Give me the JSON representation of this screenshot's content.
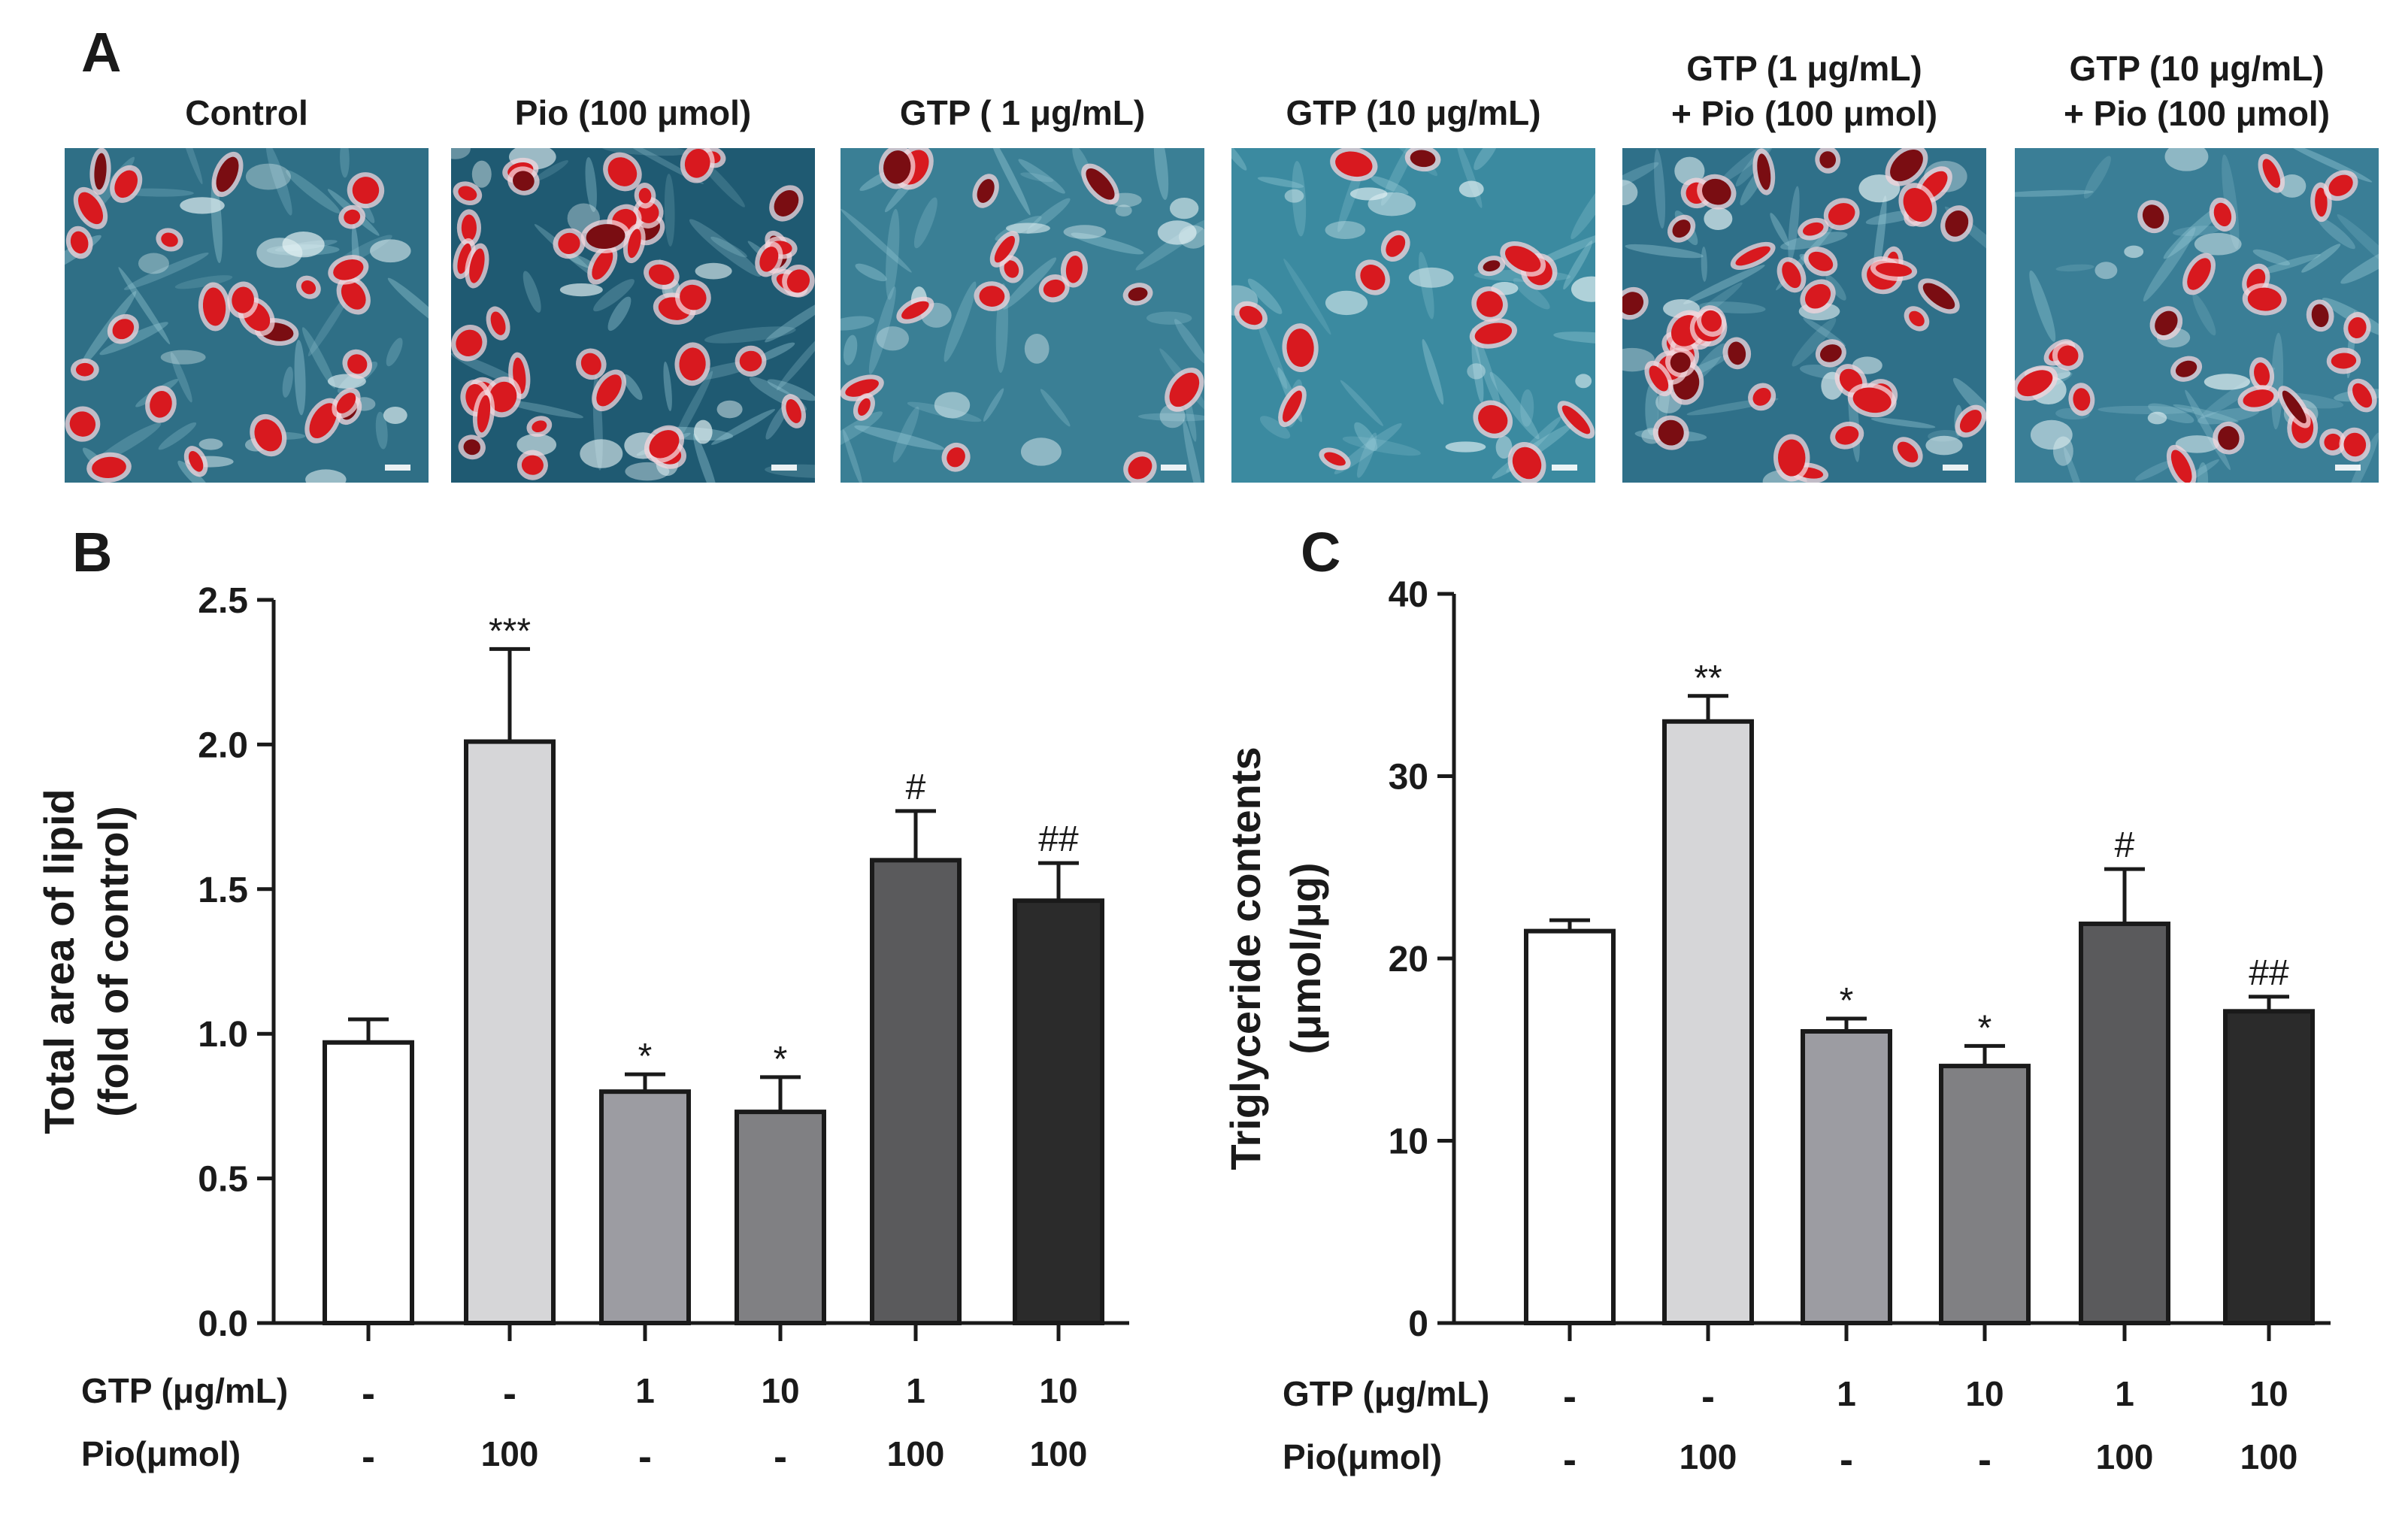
{
  "figure": {
    "panel_a_letter": "A",
    "micrographs": [
      {
        "label_line1": "Control",
        "label_line2": "",
        "background": "#2f6f86",
        "stain_density": "medium"
      },
      {
        "label_line1": "Pio (100 μmol)",
        "label_line2": "",
        "background": "#1f5a72",
        "stain_density": "high"
      },
      {
        "label_line1": "GTP ( 1 μg/mL)",
        "label_line2": "",
        "background": "#3a7f95",
        "stain_density": "low"
      },
      {
        "label_line1": "GTP (10 μg/mL)",
        "label_line2": "",
        "background": "#3b8aa0",
        "stain_density": "low"
      },
      {
        "label_line1": "GTP (1 μg/mL)",
        "label_line2": "+ Pio (100 μmol)",
        "background": "#2f7089",
        "stain_density": "high"
      },
      {
        "label_line1": "GTP (10 μg/mL)",
        "label_line2": "+ Pio (100 μmol)",
        "background": "#3a7e96",
        "stain_density": "medium"
      }
    ]
  },
  "chart_data": [
    {
      "panel": "B",
      "type": "bar",
      "title": "",
      "xlabel": "",
      "ylabel": "Total area of lipid (fold of control)",
      "ylabel_line1": "Total area of lipid",
      "ylabel_line2": "(fold of control)",
      "ylim": [
        0,
        2.5
      ],
      "yticks": [
        0.0,
        0.5,
        1.0,
        1.5,
        2.0,
        2.5
      ],
      "ytick_labels": [
        "0.0",
        "0.5",
        "1.0",
        "1.5",
        "2.0",
        "2.5"
      ],
      "categories": [
        "Control",
        "Pio 100",
        "GTP 1",
        "GTP 10",
        "GTP 1 + Pio 100",
        "GTP 10 + Pio 100"
      ],
      "values": [
        0.97,
        2.01,
        0.8,
        0.73,
        1.6,
        1.46
      ],
      "errors": [
        0.08,
        0.32,
        0.06,
        0.12,
        0.17,
        0.13
      ],
      "significance": [
        "",
        "***",
        "*",
        "*",
        "#",
        "##"
      ],
      "bar_colors": [
        "#ffffff",
        "#d6d6d8",
        "#9c9ca2",
        "#808083",
        "#5a5a5c",
        "#2b2b2b"
      ],
      "conditions": [
        {
          "label": "GTP (μg/mL)",
          "values": [
            "-",
            "-",
            "1",
            "10",
            "1",
            "10"
          ]
        },
        {
          "label": "Pio(μmol)",
          "values": [
            "-",
            "100",
            "-",
            "-",
            "100",
            "100"
          ]
        }
      ]
    },
    {
      "panel": "C",
      "type": "bar",
      "title": "",
      "xlabel": "",
      "ylabel": "Triglyceride contents (μmol/μg)",
      "ylabel_line1": "Triglyceride contents",
      "ylabel_line2": "(μmol/μg)",
      "ylim": [
        0,
        40
      ],
      "yticks": [
        0,
        10,
        20,
        30,
        40
      ],
      "ytick_labels": [
        "0",
        "10",
        "20",
        "30",
        "40"
      ],
      "categories": [
        "Control",
        "Pio 100",
        "GTP 1",
        "GTP 10",
        "GTP 1 + Pio 100",
        "GTP 10 + Pio 100"
      ],
      "values": [
        21.5,
        33.0,
        16.0,
        14.1,
        21.9,
        17.1
      ],
      "errors": [
        0.6,
        1.4,
        0.7,
        1.1,
        3.0,
        0.8
      ],
      "significance": [
        "",
        "**",
        "*",
        "*",
        "#",
        "##"
      ],
      "bar_colors": [
        "#ffffff",
        "#d6d6d8",
        "#9c9ca2",
        "#808083",
        "#5a5a5c",
        "#2b2b2b"
      ],
      "conditions": [
        {
          "label": "GTP (μg/mL)",
          "values": [
            "-",
            "-",
            "1",
            "10",
            "1",
            "10"
          ]
        },
        {
          "label": "Pio(μmol)",
          "values": [
            "-",
            "100",
            "-",
            "-",
            "100",
            "100"
          ]
        }
      ]
    }
  ]
}
